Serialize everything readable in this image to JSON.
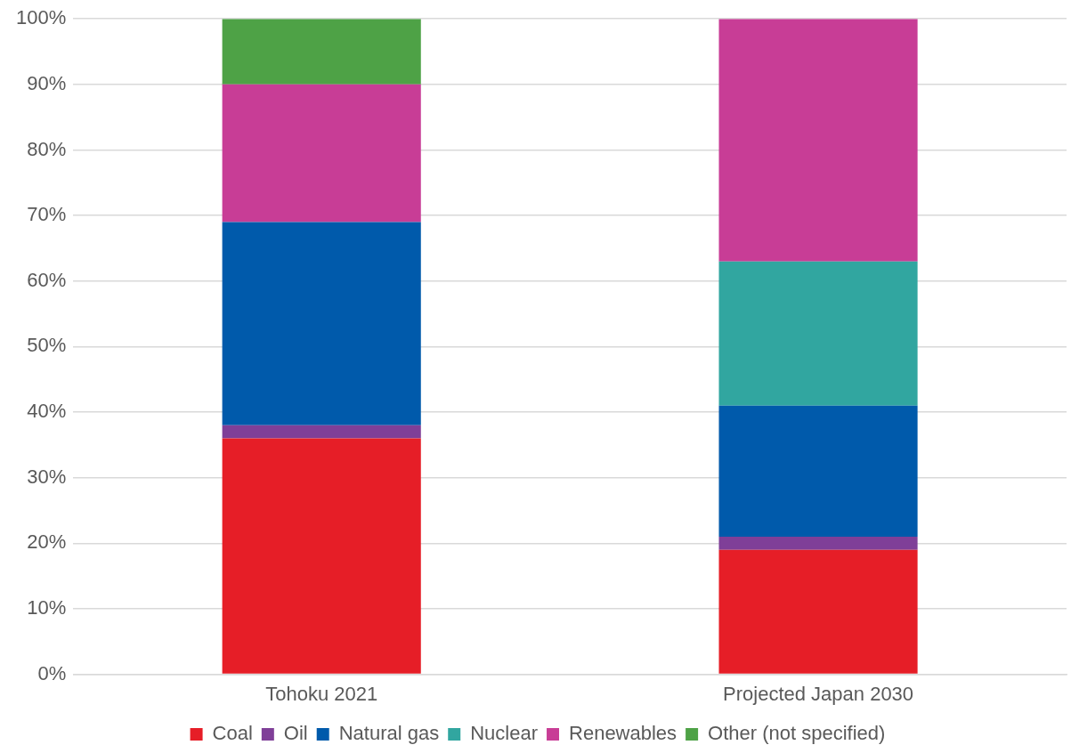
{
  "chart_data": {
    "type": "bar",
    "stacked": true,
    "categories": [
      "Tohoku 2021",
      "Projected Japan 2030"
    ],
    "series": [
      {
        "name": "Coal",
        "color": "#e61e27",
        "values": [
          36,
          19
        ]
      },
      {
        "name": "Oil",
        "color": "#7f3f98",
        "values": [
          2,
          2
        ]
      },
      {
        "name": "Natural gas",
        "color": "#005aab",
        "values": [
          31,
          20
        ]
      },
      {
        "name": "Nuclear",
        "color": "#31a6a0",
        "values": [
          0,
          22
        ]
      },
      {
        "name": "Renewables",
        "color": "#c83d96",
        "values": [
          21,
          37
        ]
      },
      {
        "name": "Other (not specified)",
        "color": "#4ea246",
        "values": [
          10,
          0
        ]
      }
    ],
    "ylim": [
      0,
      100
    ],
    "yticks": [
      {
        "value": 0,
        "label": "0%"
      },
      {
        "value": 10,
        "label": "10%"
      },
      {
        "value": 20,
        "label": "20%"
      },
      {
        "value": 30,
        "label": "30%"
      },
      {
        "value": 40,
        "label": "40%"
      },
      {
        "value": 50,
        "label": "50%"
      },
      {
        "value": 60,
        "label": "60%"
      },
      {
        "value": 70,
        "label": "70%"
      },
      {
        "value": 80,
        "label": "80%"
      },
      {
        "value": 90,
        "label": "90%"
      },
      {
        "value": 100,
        "label": "100%"
      }
    ],
    "grid": "y",
    "legend": "bottom"
  }
}
